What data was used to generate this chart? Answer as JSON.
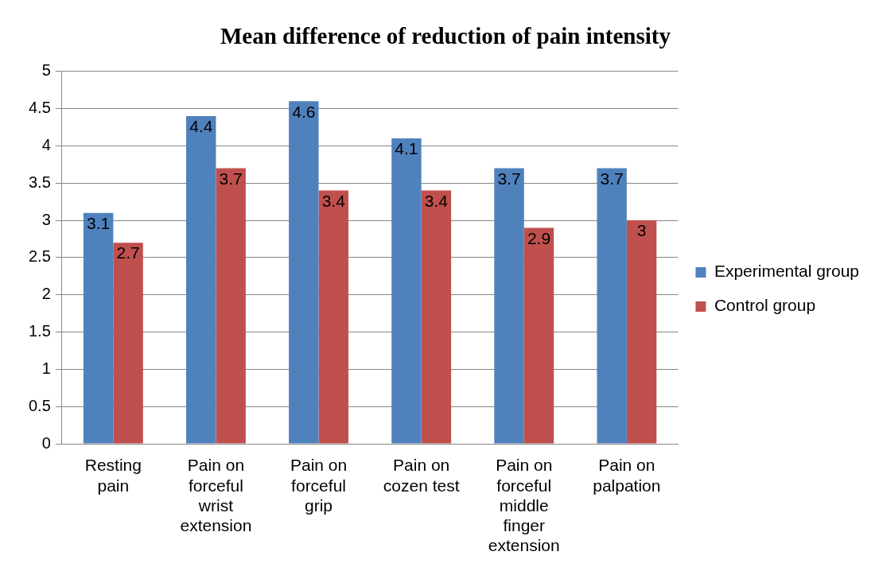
{
  "chart_data": {
    "type": "bar",
    "title": "Mean difference of reduction of pain intensity",
    "categories": [
      "Resting pain",
      "Pain on forceful wrist extension",
      "Pain on forceful grip",
      "Pain on cozen test",
      "Pain on forceful middle finger extension",
      "Pain on palpation"
    ],
    "series": [
      {
        "name": "Experimental group",
        "color": "#4f81bd",
        "values": [
          3.1,
          4.4,
          4.6,
          4.1,
          3.7,
          3.7
        ]
      },
      {
        "name": "Control group",
        "color": "#c0504d",
        "values": [
          2.7,
          3.7,
          3.4,
          3.4,
          2.9,
          3
        ]
      }
    ],
    "ylim": [
      0,
      5
    ],
    "yticks": [
      0,
      0.5,
      1,
      1.5,
      2,
      2.5,
      3,
      3.5,
      4,
      4.5,
      5
    ],
    "grid": "y",
    "legend": "right",
    "data_labels": true
  }
}
